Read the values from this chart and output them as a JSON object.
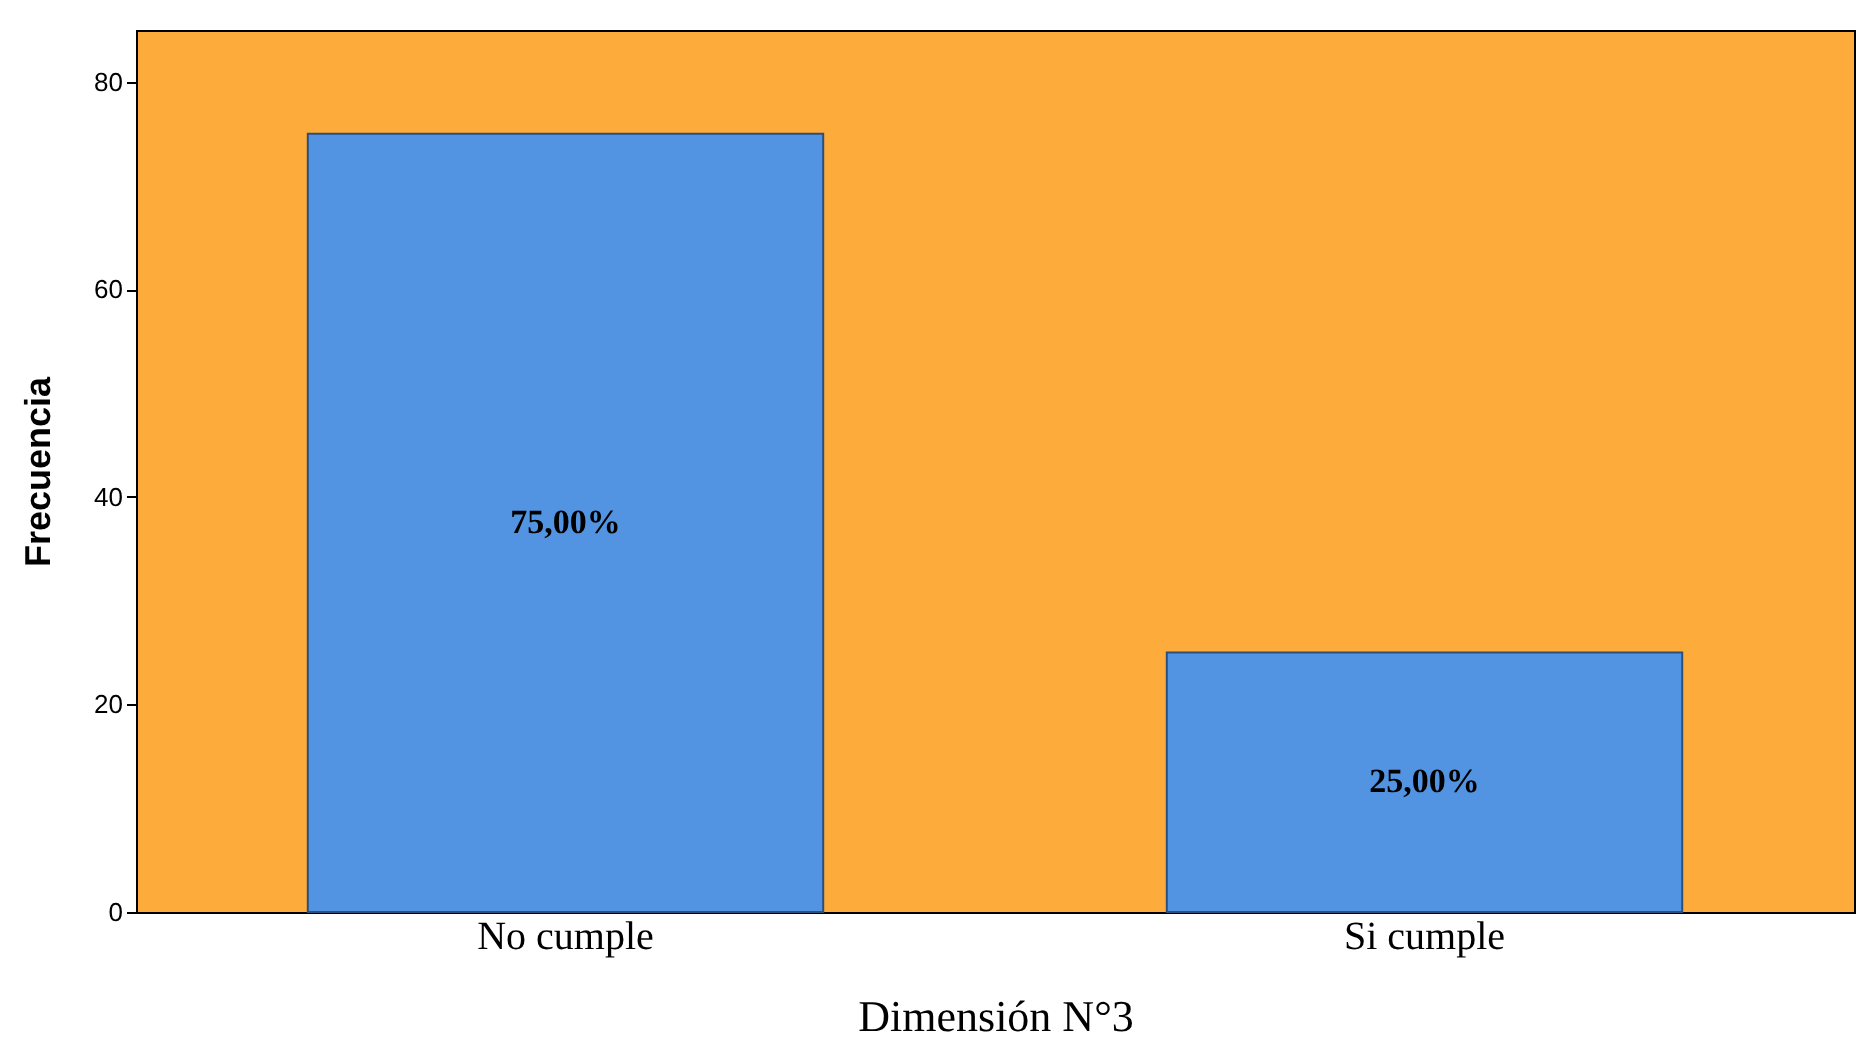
{
  "chart_data": {
    "type": "bar",
    "xlabel": "Dimensión N°3",
    "ylabel": "Frecuencia",
    "categories": [
      "No cumple",
      "Si cumple"
    ],
    "values": [
      75,
      25
    ],
    "value_labels": [
      "75,00%",
      "25,00%"
    ],
    "color": "#5294e2",
    "ylim": [
      0,
      85
    ],
    "yticks": [
      0,
      20,
      40,
      60,
      80
    ],
    "grid": false
  }
}
